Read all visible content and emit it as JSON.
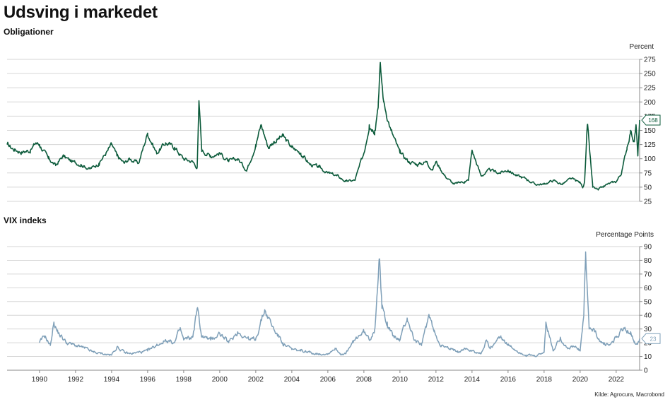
{
  "title": "Udsving i markedet",
  "source": "Kilde: Agrocura, Macrobond",
  "colors": {
    "bonds": "#0b5a3a",
    "vix": "#7e9fb8",
    "grid": "#d6d6d6"
  },
  "chart_data": [
    {
      "type": "line",
      "title": "Obligationer",
      "ylabel": "Percent",
      "ylim": [
        25,
        275
      ],
      "yticks": [
        25,
        50,
        75,
        100,
        125,
        150,
        175,
        200,
        225,
        250,
        275
      ],
      "xlim": [
        1988.2,
        2023.3
      ],
      "grid": true,
      "last_value_label": "168",
      "series": [
        {
          "values_anchor_x": [
            1988.2,
            1988.5,
            1989.0,
            1989.5,
            1989.8,
            1990.0,
            1990.5,
            1990.9,
            1991.3,
            1991.8,
            1992.3,
            1992.8,
            1993.3,
            1993.8,
            1994.0,
            1994.3,
            1994.7,
            1995.0,
            1995.5,
            1996.0,
            1996.5,
            1997.0,
            1997.5,
            1998.0,
            1998.5,
            1998.75,
            1998.85,
            1999.0,
            1999.5,
            2000.0,
            2000.5,
            2001.0,
            2001.5,
            2002.0,
            2002.3,
            2002.7,
            2003.0,
            2003.5,
            2004.0,
            2004.5,
            2005.0,
            2005.5,
            2006.0,
            2006.5,
            2007.0,
            2007.5,
            2008.0,
            2008.3,
            2008.6,
            2008.8,
            2008.9,
            2009.1,
            2009.5,
            2010.0,
            2010.5,
            2011.0,
            2011.5,
            2011.8,
            2012.0,
            2012.5,
            2013.0,
            2013.3,
            2013.6,
            2013.8,
            2014.0,
            2014.5,
            2015.0,
            2015.5,
            2016.0,
            2016.5,
            2017.0,
            2017.5,
            2018.0,
            2018.5,
            2019.0,
            2019.5,
            2020.0,
            2020.15,
            2020.25,
            2020.4,
            2020.7,
            2021.0,
            2021.5,
            2022.0,
            2022.3,
            2022.6,
            2022.8,
            2023.0,
            2023.1,
            2023.2,
            2023.3
          ],
          "values": [
            125,
            118,
            112,
            115,
            128,
            125,
            100,
            88,
            105,
            95,
            90,
            82,
            92,
            115,
            125,
            105,
            92,
            100,
            92,
            145,
            110,
            128,
            120,
            100,
            95,
            85,
            200,
            115,
            105,
            110,
            95,
            100,
            80,
            125,
            160,
            120,
            130,
            140,
            120,
            110,
            90,
            85,
            75,
            70,
            60,
            62,
            110,
            160,
            150,
            200,
            265,
            200,
            150,
            110,
            95,
            90,
            95,
            80,
            95,
            70,
            55,
            58,
            60,
            62,
            115,
            70,
            80,
            75,
            80,
            70,
            65,
            55,
            55,
            62,
            55,
            65,
            58,
            50,
            60,
            160,
            50,
            45,
            55,
            60,
            75,
            120,
            150,
            130,
            160,
            105,
            168
          ]
        }
      ]
    },
    {
      "type": "line",
      "title": "VIX indeks",
      "ylabel": "Percentage Points",
      "ylim": [
        0,
        90
      ],
      "yticks": [
        0,
        10,
        20,
        30,
        40,
        50,
        60,
        70,
        80,
        90
      ],
      "xlim": [
        1988.2,
        2023.3
      ],
      "xticks": [
        "1990",
        "1992",
        "1994",
        "1996",
        "1998",
        "2000",
        "2002",
        "2004",
        "2006",
        "2008",
        "2010",
        "2012",
        "2014",
        "2016",
        "2018",
        "2020",
        "2022"
      ],
      "grid": true,
      "last_value_label": "23",
      "series": [
        {
          "values_anchor_x": [
            1990.0,
            1990.3,
            1990.6,
            1990.8,
            1991.0,
            1991.5,
            1992.0,
            1992.5,
            1993.0,
            1993.5,
            1994.0,
            1994.3,
            1994.7,
            1995.0,
            1995.5,
            1996.0,
            1996.5,
            1997.0,
            1997.5,
            1997.8,
            1998.0,
            1998.5,
            1998.75,
            1999.0,
            1999.5,
            2000.0,
            2000.5,
            2001.0,
            2001.7,
            2002.0,
            2002.5,
            2002.7,
            2003.0,
            2003.5,
            2004.0,
            2004.5,
            2005.0,
            2005.5,
            2006.0,
            2006.4,
            2006.7,
            2007.0,
            2007.4,
            2007.7,
            2008.0,
            2008.3,
            2008.6,
            2008.85,
            2009.0,
            2009.3,
            2009.6,
            2010.0,
            2010.4,
            2010.8,
            2011.2,
            2011.6,
            2011.9,
            2012.3,
            2012.8,
            2013.2,
            2013.6,
            2014.0,
            2014.5,
            2014.8,
            2015.0,
            2015.6,
            2016.0,
            2016.5,
            2017.0,
            2017.5,
            2018.0,
            2018.1,
            2018.5,
            2018.9,
            2019.3,
            2019.7,
            2020.0,
            2020.2,
            2020.3,
            2020.5,
            2020.8,
            2021.2,
            2021.6,
            2022.0,
            2022.4,
            2022.8,
            2023.0,
            2023.2,
            2023.3
          ],
          "values": [
            20,
            25,
            18,
            35,
            28,
            20,
            18,
            16,
            13,
            12,
            11,
            17,
            13,
            12,
            13,
            14,
            18,
            22,
            20,
            30,
            22,
            24,
            45,
            25,
            22,
            27,
            20,
            28,
            22,
            23,
            44,
            38,
            30,
            20,
            15,
            14,
            13,
            12,
            12,
            16,
            12,
            12,
            20,
            25,
            28,
            22,
            30,
            81,
            45,
            35,
            25,
            22,
            38,
            22,
            18,
            40,
            28,
            18,
            15,
            14,
            16,
            14,
            12,
            22,
            16,
            25,
            18,
            14,
            11,
            10,
            13,
            35,
            14,
            24,
            16,
            17,
            14,
            40,
            82,
            30,
            28,
            20,
            18,
            24,
            30,
            28,
            20,
            20,
            23
          ]
        }
      ]
    }
  ]
}
